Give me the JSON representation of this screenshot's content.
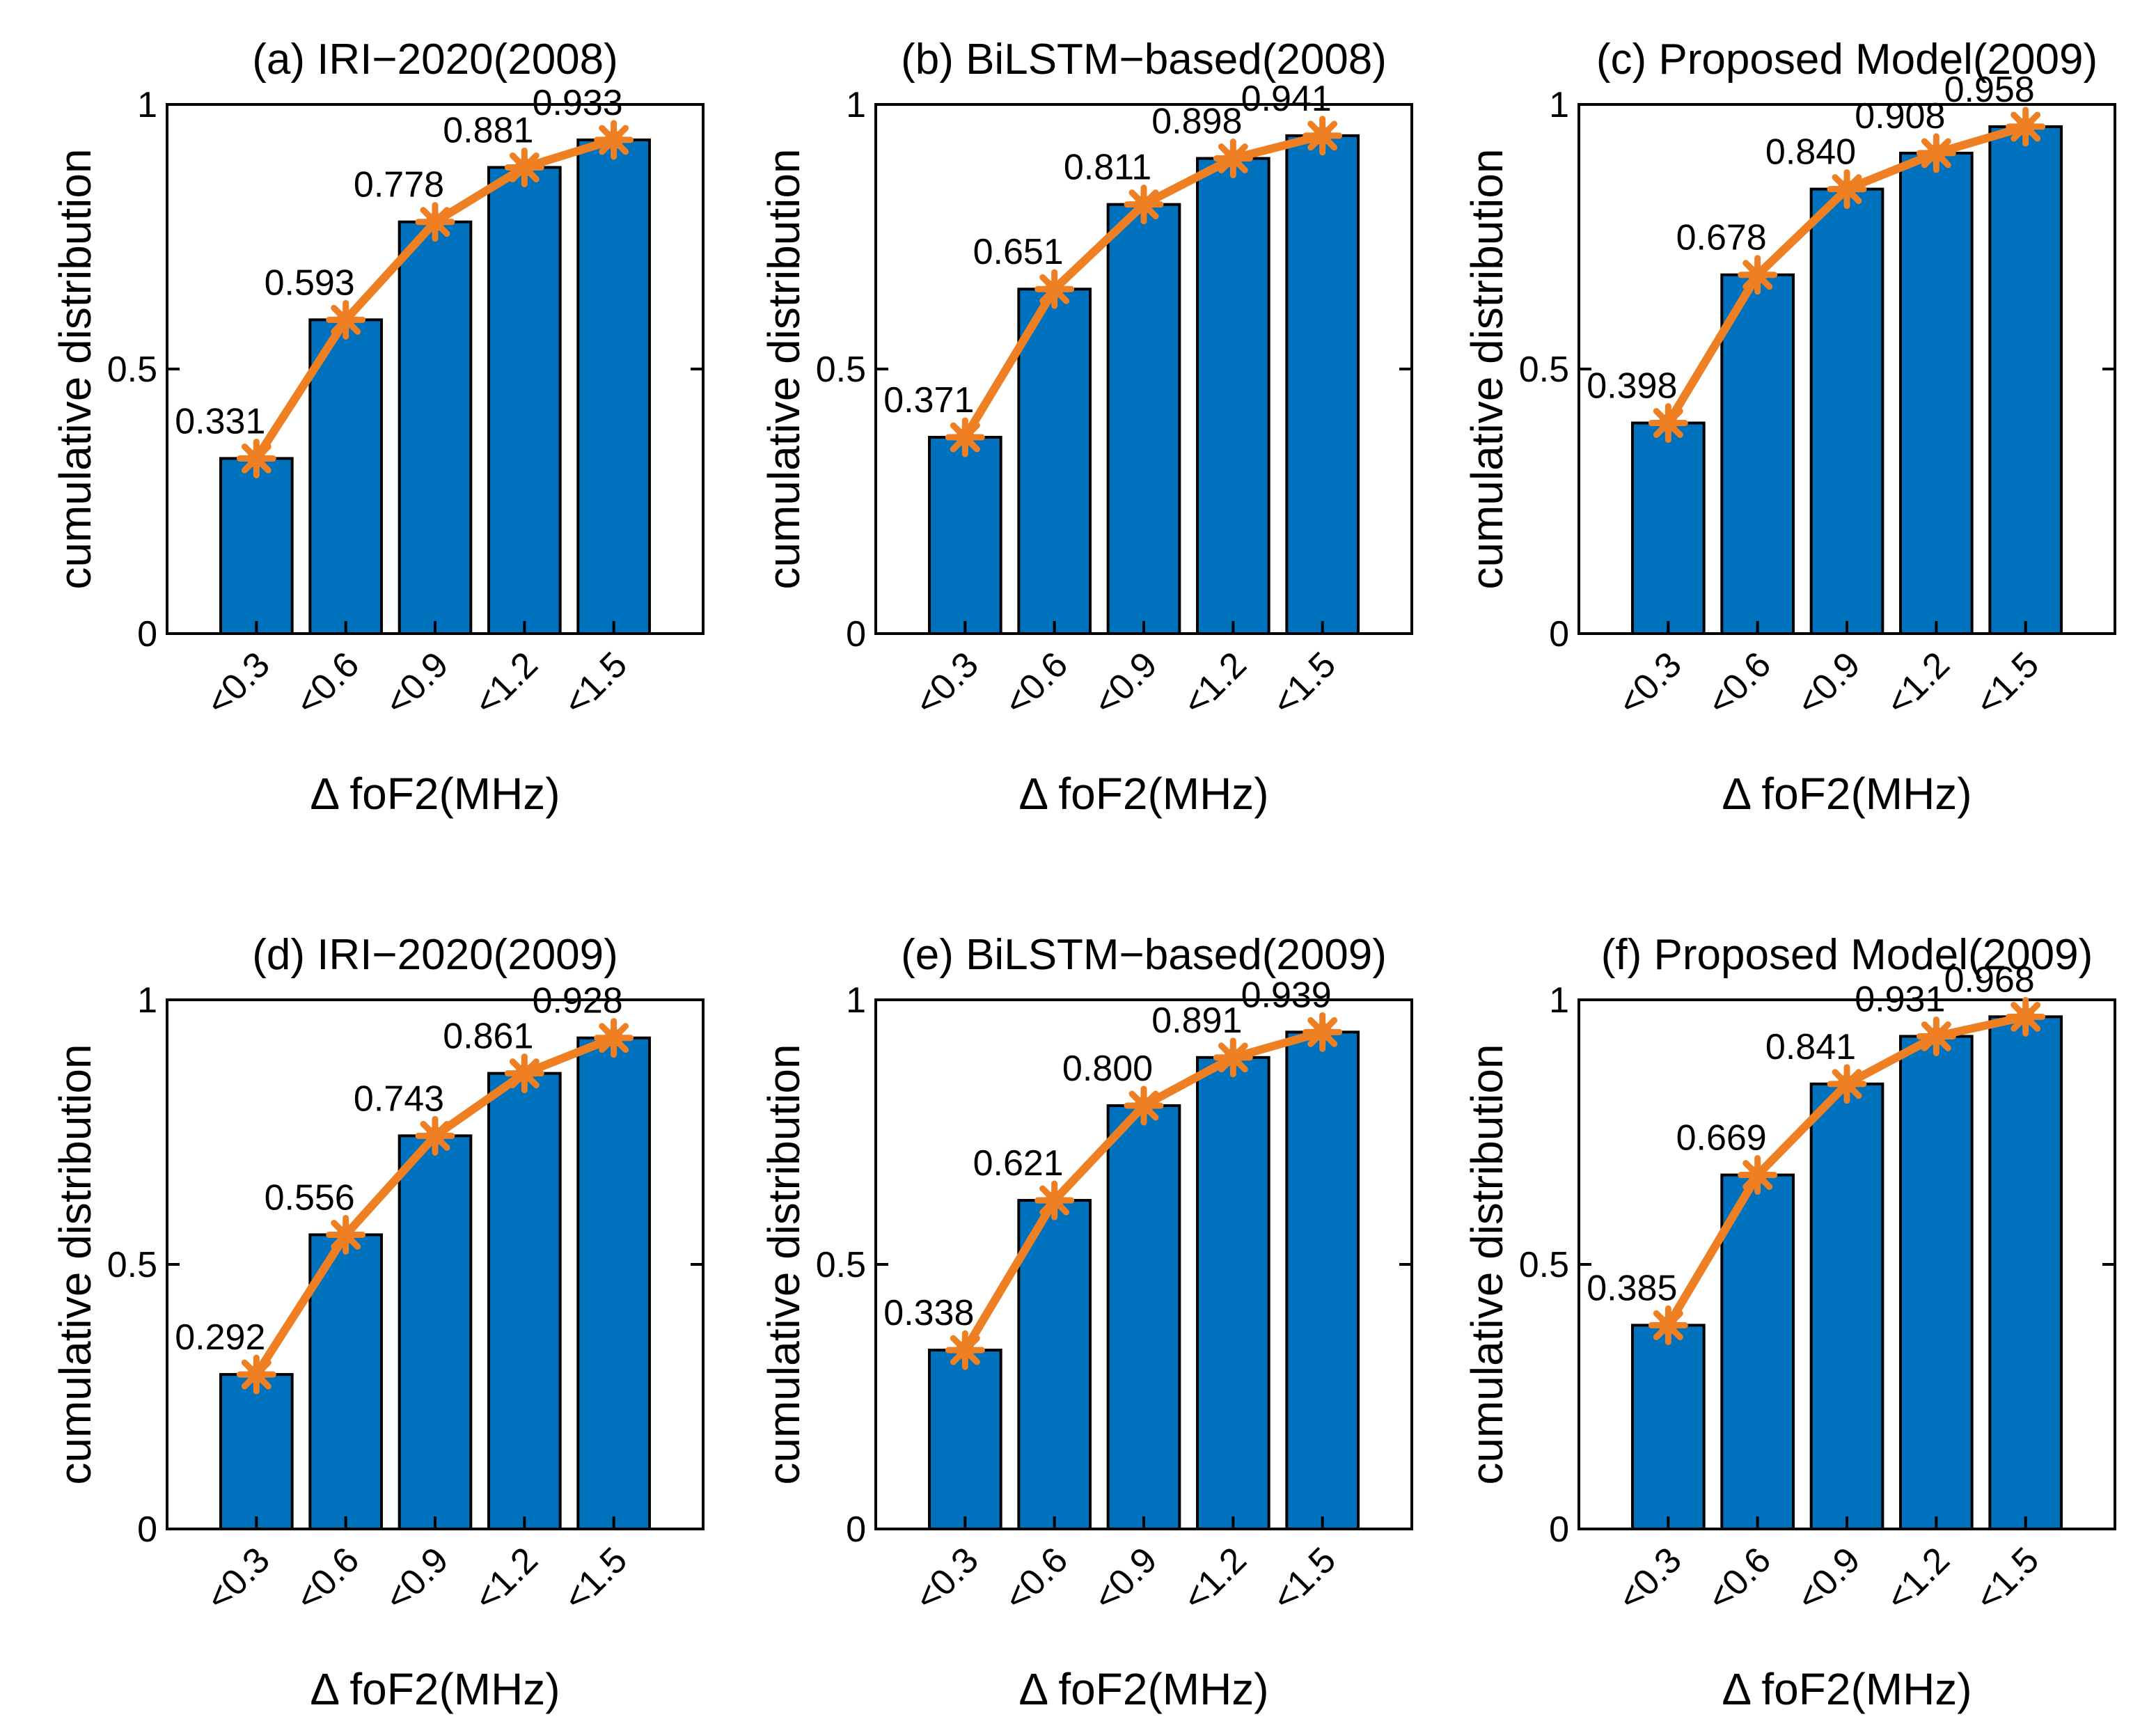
{
  "colors": {
    "bar": "#0072BD",
    "line": "#EE7F22",
    "axis": "#000000",
    "background": "#FFFFFF"
  },
  "chart_data": [
    {
      "type": "bar",
      "title": "(a) IRI−2020(2008)",
      "xlabel": "Δ foF2(MHz)",
      "ylabel": "cumulative distribution",
      "categories": [
        "<0.3",
        "<0.6",
        "<0.9",
        "<1.2",
        "<1.5"
      ],
      "values": [
        0.331,
        0.593,
        0.778,
        0.881,
        0.933
      ],
      "data_labels": [
        "0.331",
        "0.593",
        "0.778",
        "0.881",
        "0.933"
      ],
      "ylim": [
        0,
        1
      ],
      "yticks": [
        0,
        0.5,
        1
      ],
      "ytick_labels": [
        "0",
        "0.5",
        "1"
      ],
      "overlay": "line-with-asterisk-markers"
    },
    {
      "type": "bar",
      "title": "(b) BiLSTM−based(2008)",
      "xlabel": "Δ foF2(MHz)",
      "ylabel": "cumulative distribution",
      "categories": [
        "<0.3",
        "<0.6",
        "<0.9",
        "<1.2",
        "<1.5"
      ],
      "values": [
        0.371,
        0.651,
        0.811,
        0.898,
        0.941
      ],
      "data_labels": [
        "0.371",
        "0.651",
        "0.811",
        "0.898",
        "0.941"
      ],
      "ylim": [
        0,
        1
      ],
      "yticks": [
        0,
        0.5,
        1
      ],
      "ytick_labels": [
        "0",
        "0.5",
        "1"
      ],
      "overlay": "line-with-asterisk-markers"
    },
    {
      "type": "bar",
      "title": "(c) Proposed Model(2009)",
      "xlabel": "Δ foF2(MHz)",
      "ylabel": "cumulative distribution",
      "categories": [
        "<0.3",
        "<0.6",
        "<0.9",
        "<1.2",
        "<1.5"
      ],
      "values": [
        0.398,
        0.678,
        0.84,
        0.908,
        0.958
      ],
      "data_labels": [
        "0.398",
        "0.678",
        "0.840",
        "0.908",
        "0.958"
      ],
      "ylim": [
        0,
        1
      ],
      "yticks": [
        0,
        0.5,
        1
      ],
      "ytick_labels": [
        "0",
        "0.5",
        "1"
      ],
      "overlay": "line-with-asterisk-markers"
    },
    {
      "type": "bar",
      "title": "(d) IRI−2020(2009)",
      "xlabel": "Δ foF2(MHz)",
      "ylabel": "cumulative distribution",
      "categories": [
        "<0.3",
        "<0.6",
        "<0.9",
        "<1.2",
        "<1.5"
      ],
      "values": [
        0.292,
        0.556,
        0.743,
        0.861,
        0.928
      ],
      "data_labels": [
        "0.292",
        "0.556",
        "0.743",
        "0.861",
        "0.928"
      ],
      "ylim": [
        0,
        1
      ],
      "yticks": [
        0,
        0.5,
        1
      ],
      "ytick_labels": [
        "0",
        "0.5",
        "1"
      ],
      "overlay": "line-with-asterisk-markers"
    },
    {
      "type": "bar",
      "title": "(e) BiLSTM−based(2009)",
      "xlabel": "Δ foF2(MHz)",
      "ylabel": "cumulative distribution",
      "categories": [
        "<0.3",
        "<0.6",
        "<0.9",
        "<1.2",
        "<1.5"
      ],
      "values": [
        0.338,
        0.621,
        0.8,
        0.891,
        0.939
      ],
      "data_labels": [
        "0.338",
        "0.621",
        "0.800",
        "0.891",
        "0.939"
      ],
      "ylim": [
        0,
        1
      ],
      "yticks": [
        0,
        0.5,
        1
      ],
      "ytick_labels": [
        "0",
        "0.5",
        "1"
      ],
      "overlay": "line-with-asterisk-markers"
    },
    {
      "type": "bar",
      "title": "(f) Proposed Model(2009)",
      "xlabel": "Δ foF2(MHz)",
      "ylabel": "cumulative distribution",
      "categories": [
        "<0.3",
        "<0.6",
        "<0.9",
        "<1.2",
        "<1.5"
      ],
      "values": [
        0.385,
        0.669,
        0.841,
        0.931,
        0.968
      ],
      "data_labels": [
        "0.385",
        "0.669",
        "0.841",
        "0.931",
        "0.968"
      ],
      "ylim": [
        0,
        1
      ],
      "yticks": [
        0,
        0.5,
        1
      ],
      "ytick_labels": [
        "0",
        "0.5",
        "1"
      ],
      "overlay": "line-with-asterisk-markers"
    }
  ]
}
